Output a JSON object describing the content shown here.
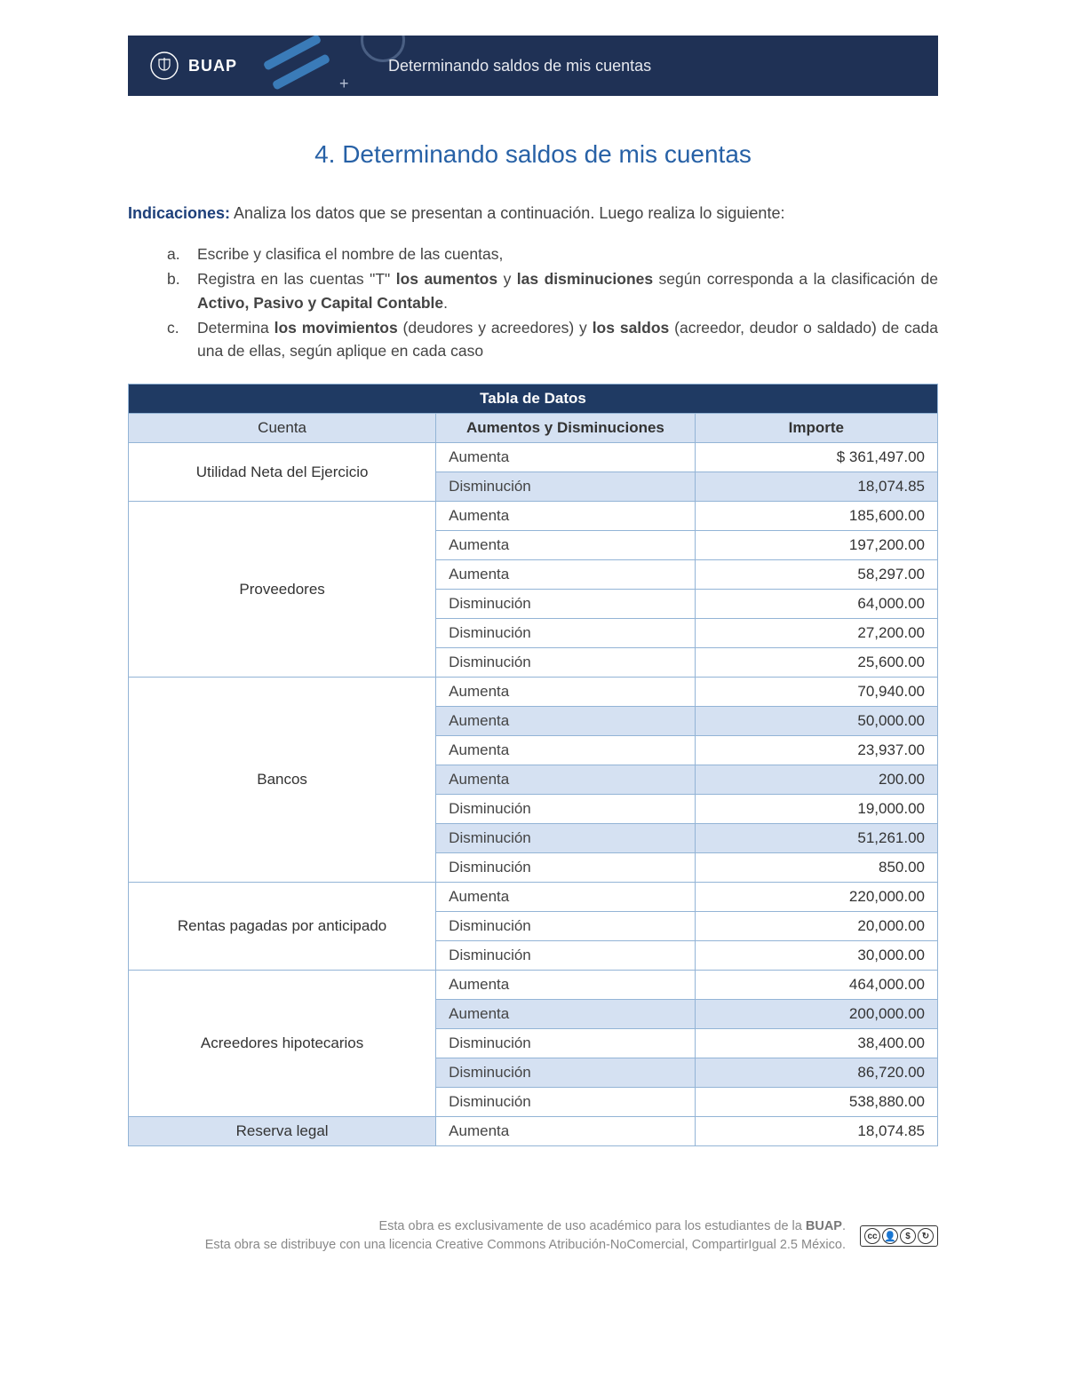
{
  "banner": {
    "brand": "BUAP",
    "title": "Determinando saldos de mis cuentas"
  },
  "doc": {
    "heading": "4. Determinando saldos de mis cuentas",
    "indic_label": "Indicaciones:",
    "indic_text": " Analiza los datos que se presentan a continuación. Luego realiza lo siguiente:",
    "items": [
      {
        "marker": "a.",
        "html": "Escribe y clasifica el nombre de las cuentas,"
      },
      {
        "marker": "b.",
        "html": "Registra en las cuentas \"T\" <b>los aumentos</b> y <b>las disminuciones</b> según corresponda a la clasificación de <b>Activo, Pasivo y Capital Contable</b>."
      },
      {
        "marker": "c.",
        "html": "Determina <b>los movimientos</b> (deudores y acreedores) y <b>los saldos</b> (acreedor, deudor o saldado) de cada una de ellas, según aplique en cada caso"
      }
    ]
  },
  "table": {
    "title": "Tabla de Datos",
    "columns": [
      "Cuenta",
      "Aumentos y Disminuciones",
      "Importe"
    ],
    "col_widths": [
      "38%",
      "32%",
      "30%"
    ],
    "header_bg": "#1f3a63",
    "subheader_bg": "#d5e1f2",
    "alt_row_bg": "#d5e1f2",
    "border_color": "#93b4d6",
    "groups": [
      {
        "account": "Utilidad Neta del Ejercicio",
        "rows": [
          {
            "mov": "Aumenta",
            "amt": "$ 361,497.00",
            "alt": false
          },
          {
            "mov": "Disminución",
            "amt": "18,074.85",
            "alt": true
          }
        ]
      },
      {
        "account": "Proveedores",
        "rows": [
          {
            "mov": "Aumenta",
            "amt": "185,600.00",
            "alt": false
          },
          {
            "mov": "Aumenta",
            "amt": "197,200.00",
            "alt": false
          },
          {
            "mov": "Aumenta",
            "amt": "58,297.00",
            "alt": false
          },
          {
            "mov": "Disminución",
            "amt": "64,000.00",
            "alt": false
          },
          {
            "mov": "Disminución",
            "amt": "27,200.00",
            "alt": false
          },
          {
            "mov": "Disminución",
            "amt": "25,600.00",
            "alt": false
          }
        ]
      },
      {
        "account": "Bancos",
        "rows": [
          {
            "mov": "Aumenta",
            "amt": "70,940.00",
            "alt": false
          },
          {
            "mov": "Aumenta",
            "amt": "50,000.00",
            "alt": true
          },
          {
            "mov": "Aumenta",
            "amt": "23,937.00",
            "alt": false
          },
          {
            "mov": "Aumenta",
            "amt": "200.00",
            "alt": true
          },
          {
            "mov": "Disminución",
            "amt": "19,000.00",
            "alt": false
          },
          {
            "mov": "Disminución",
            "amt": "51,261.00",
            "alt": true
          },
          {
            "mov": "Disminución",
            "amt": "850.00",
            "alt": false
          }
        ]
      },
      {
        "account": "Rentas pagadas por anticipado",
        "rows": [
          {
            "mov": "Aumenta",
            "amt": "220,000.00",
            "alt": false
          },
          {
            "mov": "Disminución",
            "amt": "20,000.00",
            "alt": false
          },
          {
            "mov": "Disminución",
            "amt": "30,000.00",
            "alt": false
          }
        ]
      },
      {
        "account": "Acreedores hipotecarios",
        "rows": [
          {
            "mov": "Aumenta",
            "amt": "464,000.00",
            "alt": false
          },
          {
            "mov": "Aumenta",
            "amt": "200,000.00",
            "alt": true
          },
          {
            "mov": "Disminución",
            "amt": "38,400.00",
            "alt": false
          },
          {
            "mov": "Disminución",
            "amt": "86,720.00",
            "alt": true
          },
          {
            "mov": "Disminución",
            "amt": "538,880.00",
            "alt": false
          }
        ]
      },
      {
        "account": "Reserva legal",
        "acct_alt": true,
        "rows": [
          {
            "mov": "Aumenta",
            "amt": "18,074.85",
            "alt": false
          }
        ]
      }
    ]
  },
  "footer": {
    "line1_pre": "Esta obra es exclusivamente de uso académico para los estudiantes de la ",
    "line1_bold": "BUAP",
    "line1_post": ".",
    "line2": "Esta obra se distribuye con una licencia Creative Commons Atribución-NoComercial, CompartirIgual 2.5 México.",
    "cc": [
      "cc",
      "①",
      "$",
      "◎"
    ]
  }
}
